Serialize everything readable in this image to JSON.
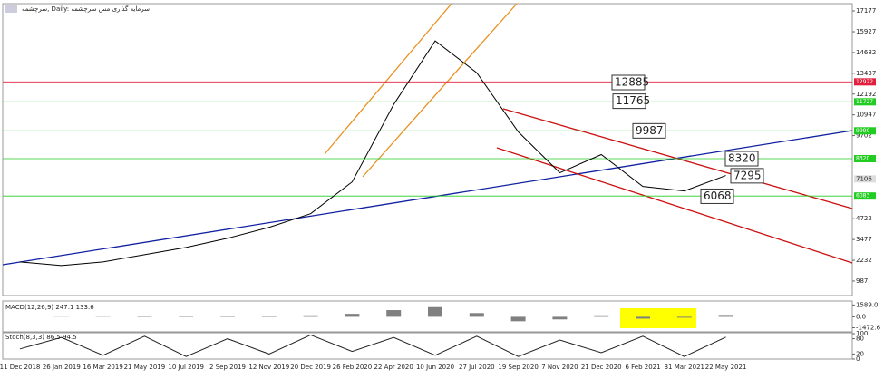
{
  "chart_data": [
    {
      "type": "line",
      "title": "سرچشمه, Daily: سرمایه گذاری مس سرچشمه",
      "categories": [
        "11 Dec 2018",
        "26 Jan 2019",
        "16 Mar 2019",
        "21 May 2019",
        "10 Jul 2019",
        "2 Sep 2019",
        "12 Nov 2019",
        "20 Dec 2019",
        "26 Feb 2020",
        "22 Apr 2020",
        "10 Jun 2020",
        "27 Jul 2020",
        "19 Sep 2020",
        "7 Nov 2020",
        "21 Dec 2020",
        "6 Feb 2021",
        "31 Mar 2021",
        "22 May 2021"
      ],
      "values": [
        2132,
        1914,
        2132,
        2568,
        3004,
        3550,
        4204,
        5022,
        6930,
        11565,
        15382,
        13473,
        9929,
        7476,
        8566,
        6658,
        6385,
        7312
      ],
      "color": "#000000",
      "ylim": [
        115,
        17613
      ],
      "yticks": [
        987,
        2232,
        3477,
        4722,
        9702,
        10947,
        12192,
        13437,
        14682,
        15927,
        17177
      ],
      "levels": [
        {
          "value": 12922,
          "color": "#e0203c"
        },
        {
          "value": 11727,
          "color": "#22cc22"
        },
        {
          "value": 9990,
          "color": "#22cc22"
        },
        {
          "value": 8320,
          "color": "#22cc22"
        },
        {
          "value": 6083,
          "color": "#22cc22"
        }
      ],
      "annotations": [
        12885,
        11765,
        9987,
        8320,
        7295,
        6068
      ],
      "last_price": 7106
    },
    {
      "type": "bar",
      "title": "MACD(12,26,9) 247.1 133.6",
      "values": [
        0,
        -20,
        30,
        60,
        80,
        90,
        150,
        200,
        400,
        900,
        1300,
        500,
        -600,
        -350,
        200,
        -250,
        -120,
        247
      ],
      "color": "#808080",
      "ylim": [
        -1900,
        2000
      ],
      "yticks": [
        {
          "value": 1589,
          "label": "1589.0"
        },
        {
          "value": 0,
          "label": "0.0"
        },
        {
          "value": -1472.6,
          "label": "-1472.6"
        }
      ]
    },
    {
      "type": "line",
      "title": "Stoch(8,3,3) 86.5 94.5",
      "values": [
        40,
        85,
        15,
        90,
        10,
        80,
        20,
        95,
        30,
        85,
        15,
        90,
        10,
        75,
        25,
        90,
        10,
        86.5
      ],
      "color": "#202020",
      "ylim": [
        0,
        100
      ],
      "yticks": [
        0,
        20,
        80,
        100
      ]
    }
  ]
}
